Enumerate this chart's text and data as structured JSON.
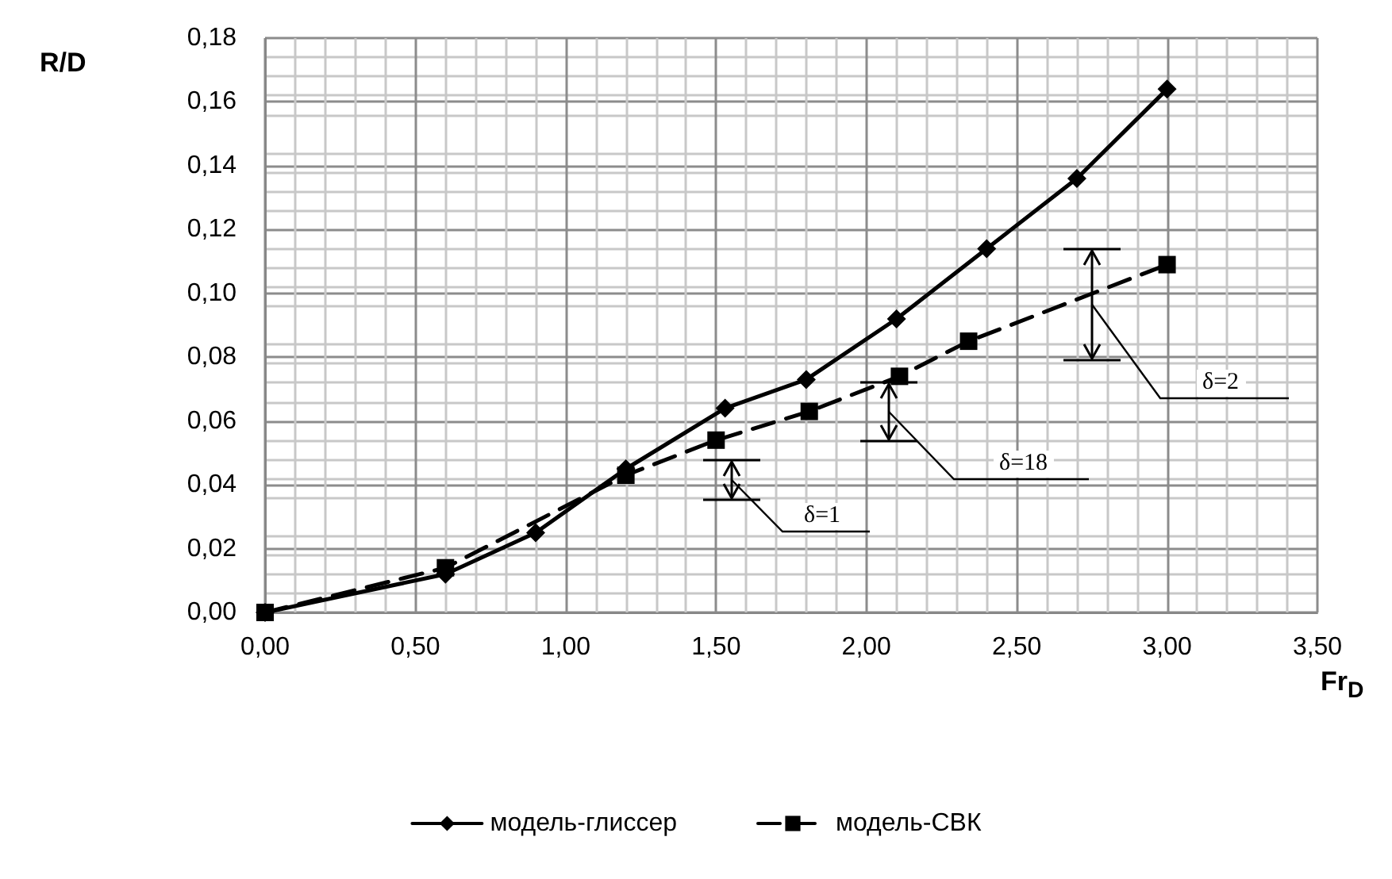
{
  "chart_data": {
    "type": "line",
    "xlabel": "Fr$_{D}$",
    "ylabel": "R/D",
    "xlim": [
      0,
      3.5
    ],
    "xticks": [
      {
        "value": 0,
        "label": "0,00"
      },
      {
        "value": 0.5,
        "label": "0,50"
      },
      {
        "value": 1,
        "label": "1,00"
      },
      {
        "value": 1.5,
        "label": "1,50"
      },
      {
        "value": 2,
        "label": "2,00"
      },
      {
        "value": 2.5,
        "label": "2,50"
      },
      {
        "value": 3,
        "label": "3,00"
      },
      {
        "value": 3.5,
        "label": "3,50"
      }
    ],
    "ylim": [
      0,
      0.18
    ],
    "yticks": [
      {
        "value": 0,
        "label": "0,00"
      },
      {
        "value": 0.02,
        "label": "0,02"
      },
      {
        "value": 0.04,
        "label": "0,04"
      },
      {
        "value": 0.06,
        "label": "0,06"
      },
      {
        "value": 0.08,
        "label": "0,08"
      },
      {
        "value": 0.1,
        "label": "0,10"
      },
      {
        "value": 0.12,
        "label": "0,12"
      },
      {
        "value": 0.14,
        "label": "0,14"
      },
      {
        "value": 0.16,
        "label": "0,16"
      },
      {
        "value": 0.18,
        "label": "0,18"
      }
    ],
    "grid": true,
    "legend": "bottom",
    "series": [
      {
        "name": "модель-глиссер",
        "color": "#000000",
        "marker": "diamond",
        "line_style": "solid",
        "x": [
          0,
          0.6,
          0.9,
          1.2,
          1.53,
          1.8,
          2.1,
          2.4,
          2.7,
          3.0
        ],
        "values": [
          0,
          0.012,
          0.025,
          0.045,
          0.064,
          0.073,
          0.092,
          0.114,
          0.136,
          0.164
        ]
      },
      {
        "name": "модель-СВК",
        "color": "#000000",
        "marker": "square",
        "line_style": "dashed",
        "x": [
          0,
          0.6,
          1.2,
          1.5,
          1.81,
          2.11,
          2.34,
          3.0
        ],
        "values": [
          0,
          0.014,
          0.043,
          0.054,
          0.063,
          0.074,
          0.085,
          0.109
        ]
      }
    ],
    "annotations": [
      "δ=1",
      "δ=18",
      "δ=2"
    ]
  }
}
